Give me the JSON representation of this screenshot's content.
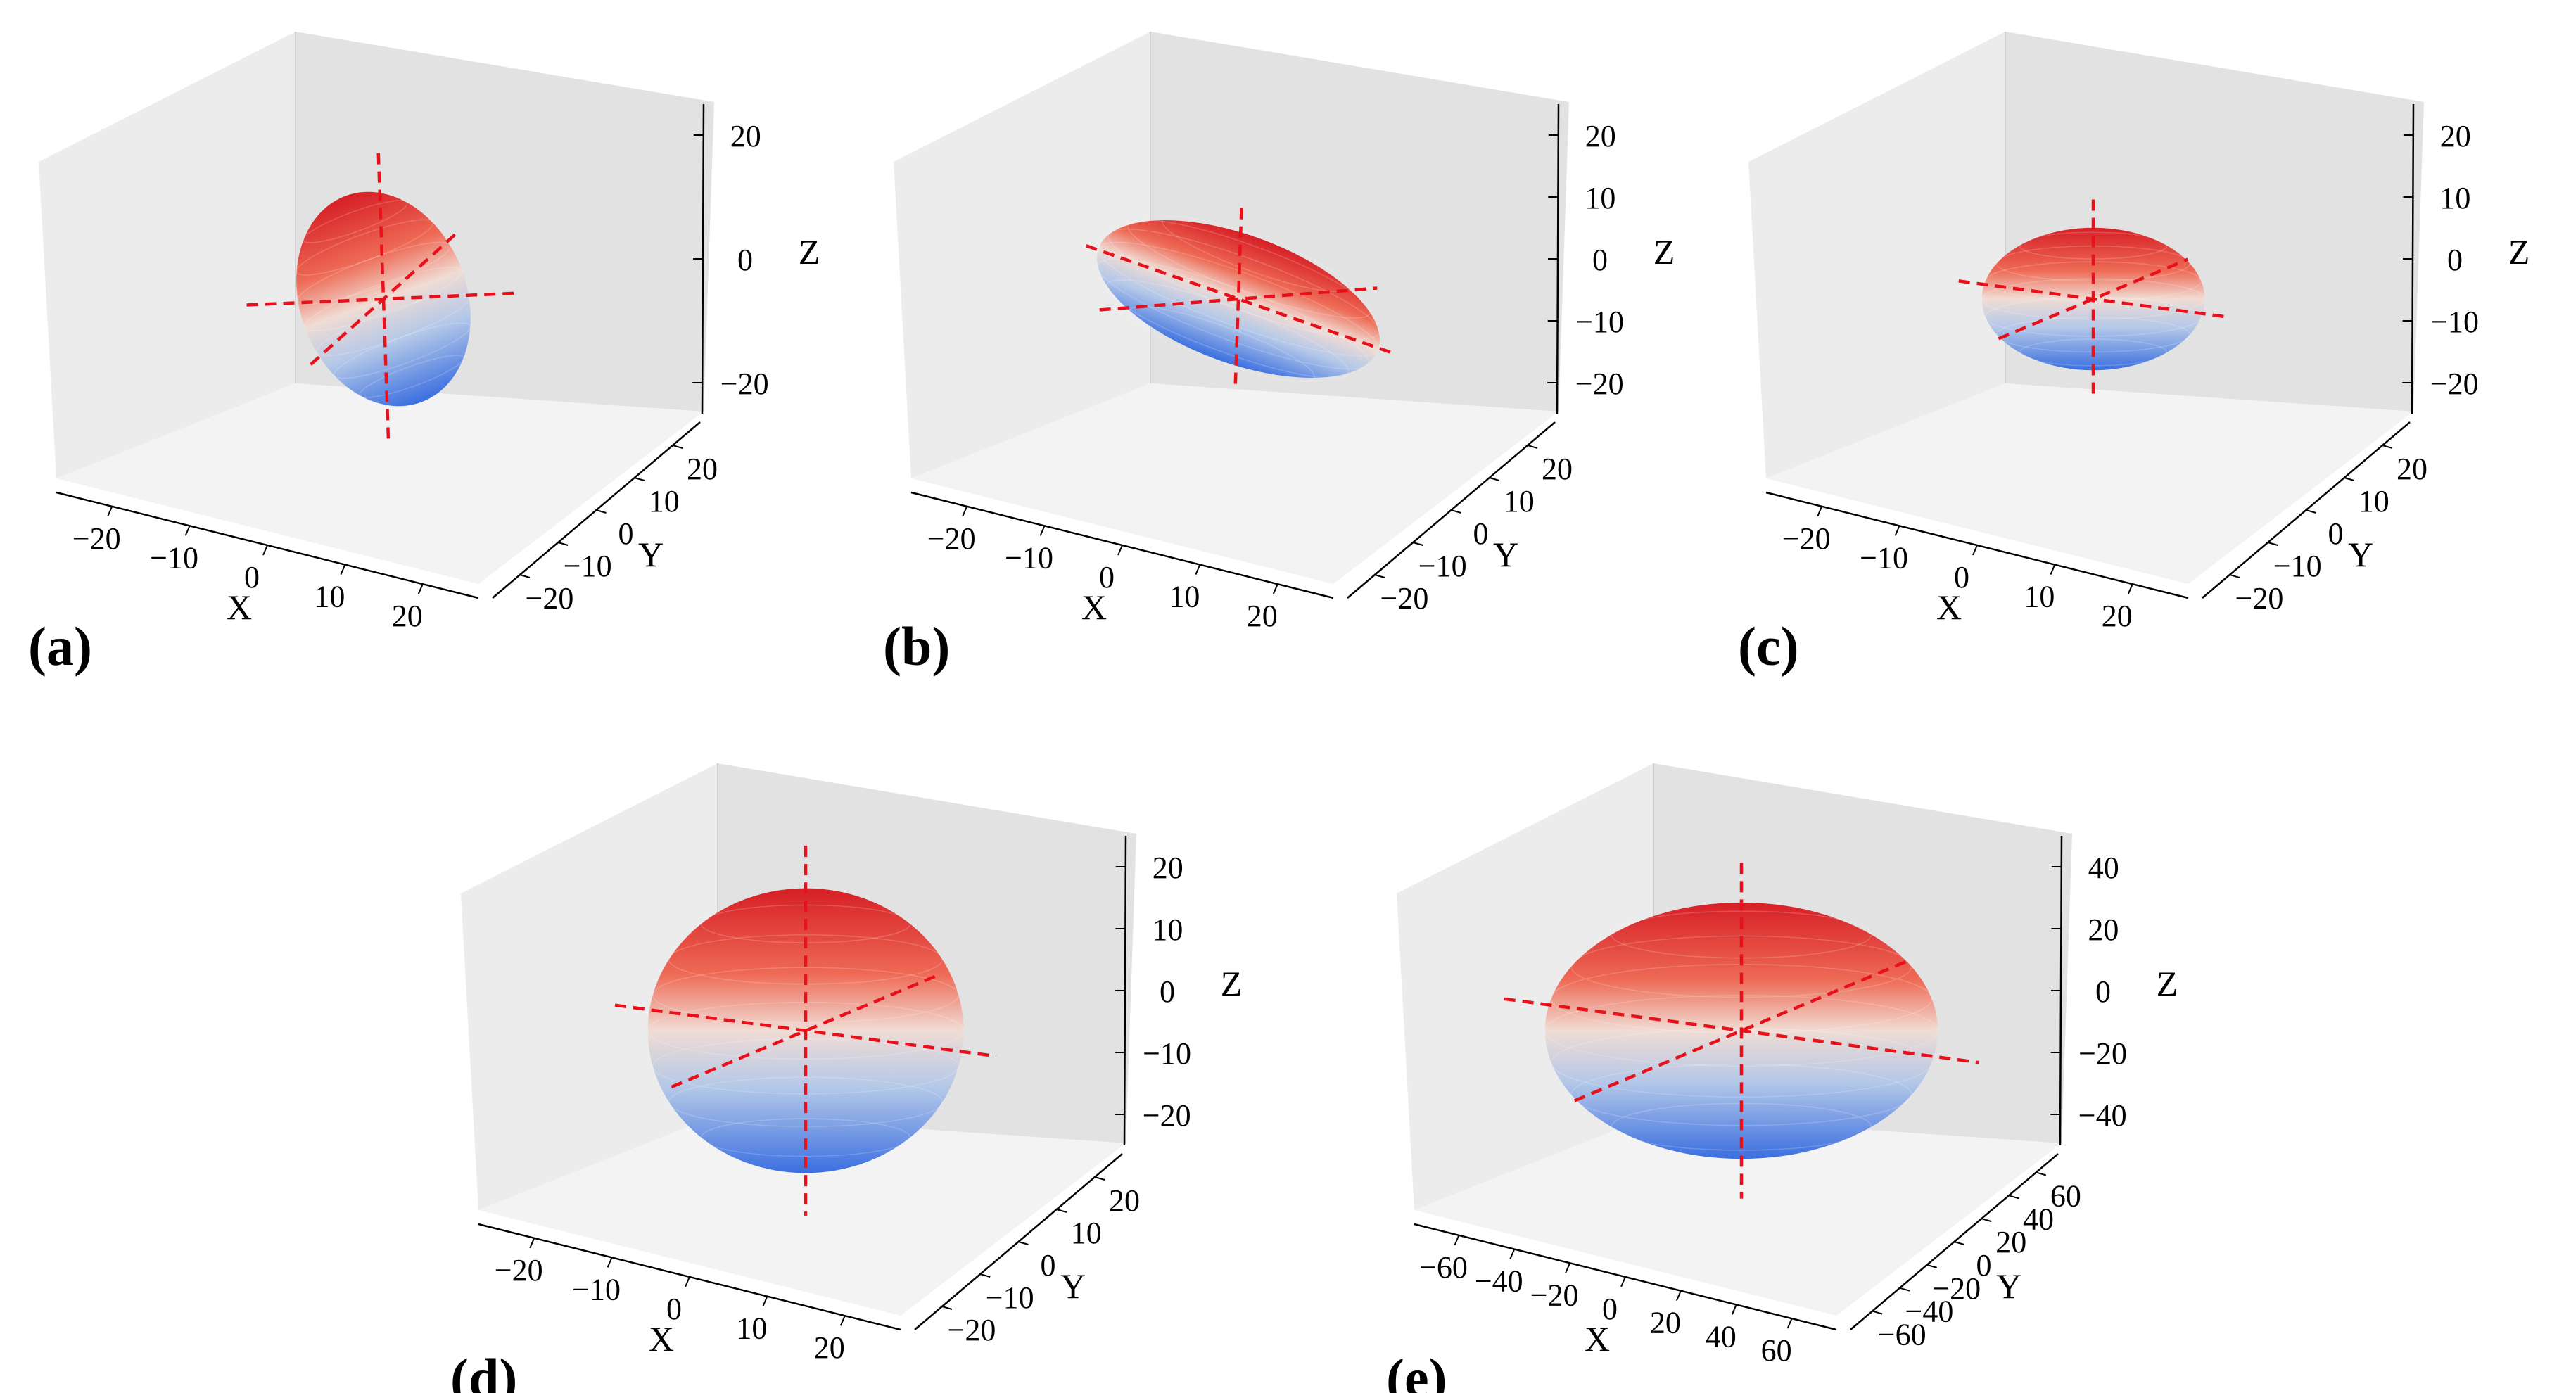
{
  "chart_data": [
    {
      "type": "3d-surface",
      "panel_label": "(a)",
      "xlabel": "X",
      "ylabel": "Y",
      "zlabel": "Z",
      "x_ticks": [
        "−20",
        "−10",
        "0",
        "10",
        "20"
      ],
      "y_ticks": [
        "−20",
        "−10",
        "0",
        "10",
        "20"
      ],
      "z_ticks": [
        "20",
        "0",
        "−20"
      ],
      "xlim": [
        -25,
        25
      ],
      "ylim": [
        -25,
        25
      ],
      "zlim": [
        -35,
        35
      ],
      "ellipsoid": {
        "semi_axes": [
          9,
          9,
          27
        ],
        "tilt_deg": -20
      },
      "principal_axes": "dashed",
      "colormap": [
        "#3b6fe0",
        "#b4c8e8",
        "#f0dcd4",
        "#ee6a55",
        "#d61f26"
      ]
    },
    {
      "type": "3d-surface",
      "panel_label": "(b)",
      "xlabel": "X",
      "ylabel": "Y",
      "zlabel": "Z",
      "x_ticks": [
        "−20",
        "−10",
        "0",
        "10",
        "20"
      ],
      "y_ticks": [
        "−20",
        "−10",
        "0",
        "10",
        "20"
      ],
      "z_ticks": [
        "20",
        "10",
        "0",
        "−10",
        "−20"
      ],
      "xlim": [
        -25,
        25
      ],
      "ylim": [
        -25,
        25
      ],
      "zlim": [
        -20,
        20
      ],
      "ellipsoid": {
        "semi_axes": [
          16,
          14,
          9
        ],
        "tilt_deg": 20
      },
      "principal_axes": "dashed",
      "colormap": [
        "#3b6fe0",
        "#b4c8e8",
        "#f0dcd4",
        "#ee6a55",
        "#d61f26"
      ]
    },
    {
      "type": "3d-surface",
      "panel_label": "(c)",
      "xlabel": "X",
      "ylabel": "Y",
      "zlabel": "Z",
      "x_ticks": [
        "−20",
        "−10",
        "0",
        "10",
        "20"
      ],
      "y_ticks": [
        "−20",
        "−10",
        "0",
        "10",
        "20"
      ],
      "z_ticks": [
        "20",
        "10",
        "0",
        "−10",
        "−20"
      ],
      "xlim": [
        -25,
        25
      ],
      "ylim": [
        -25,
        25
      ],
      "zlim": [
        -20,
        20
      ],
      "ellipsoid": {
        "semi_axes": [
          12,
          12,
          10
        ],
        "tilt_deg": 0
      },
      "principal_axes": "dashed",
      "colormap": [
        "#3b6fe0",
        "#b4c8e8",
        "#f0dcd4",
        "#ee6a55",
        "#d61f26"
      ]
    },
    {
      "type": "3d-surface",
      "panel_label": "(d)",
      "xlabel": "X",
      "ylabel": "Y",
      "zlabel": "Z",
      "x_ticks": [
        "−20",
        "−10",
        "0",
        "10",
        "20"
      ],
      "y_ticks": [
        "−20",
        "−10",
        "0",
        "10",
        "20"
      ],
      "z_ticks": [
        "20",
        "10",
        "0",
        "−10",
        "−20"
      ],
      "xlim": [
        -25,
        25
      ],
      "ylim": [
        -25,
        25
      ],
      "zlim": [
        -20,
        20
      ],
      "ellipsoid": {
        "semi_axes": [
          17,
          17,
          20
        ],
        "tilt_deg": 0
      },
      "principal_axes": "dashed",
      "colormap": [
        "#3b6fe0",
        "#b4c8e8",
        "#f0dcd4",
        "#ee6a55",
        "#d61f26"
      ]
    },
    {
      "type": "3d-surface",
      "panel_label": "(e)",
      "xlabel": "X",
      "ylabel": "Y",
      "zlabel": "Z",
      "x_ticks": [
        "−60",
        "−40",
        "−20",
        "0",
        "20",
        "40",
        "60"
      ],
      "y_ticks": [
        "−60",
        "−40",
        "−20",
        "0",
        "20",
        "40",
        "60"
      ],
      "z_ticks": [
        "40",
        "20",
        "0",
        "−20",
        "−40"
      ],
      "xlim": [
        -65,
        65
      ],
      "ylim": [
        -65,
        65
      ],
      "zlim": [
        -50,
        50
      ],
      "ellipsoid": {
        "semi_axes": [
          55,
          55,
          45
        ],
        "tilt_deg": 0
      },
      "principal_axes": "dashed",
      "colormap": [
        "#3b6fe0",
        "#b4c8e8",
        "#f0dcd4",
        "#ee6a55",
        "#d61f26"
      ]
    }
  ]
}
